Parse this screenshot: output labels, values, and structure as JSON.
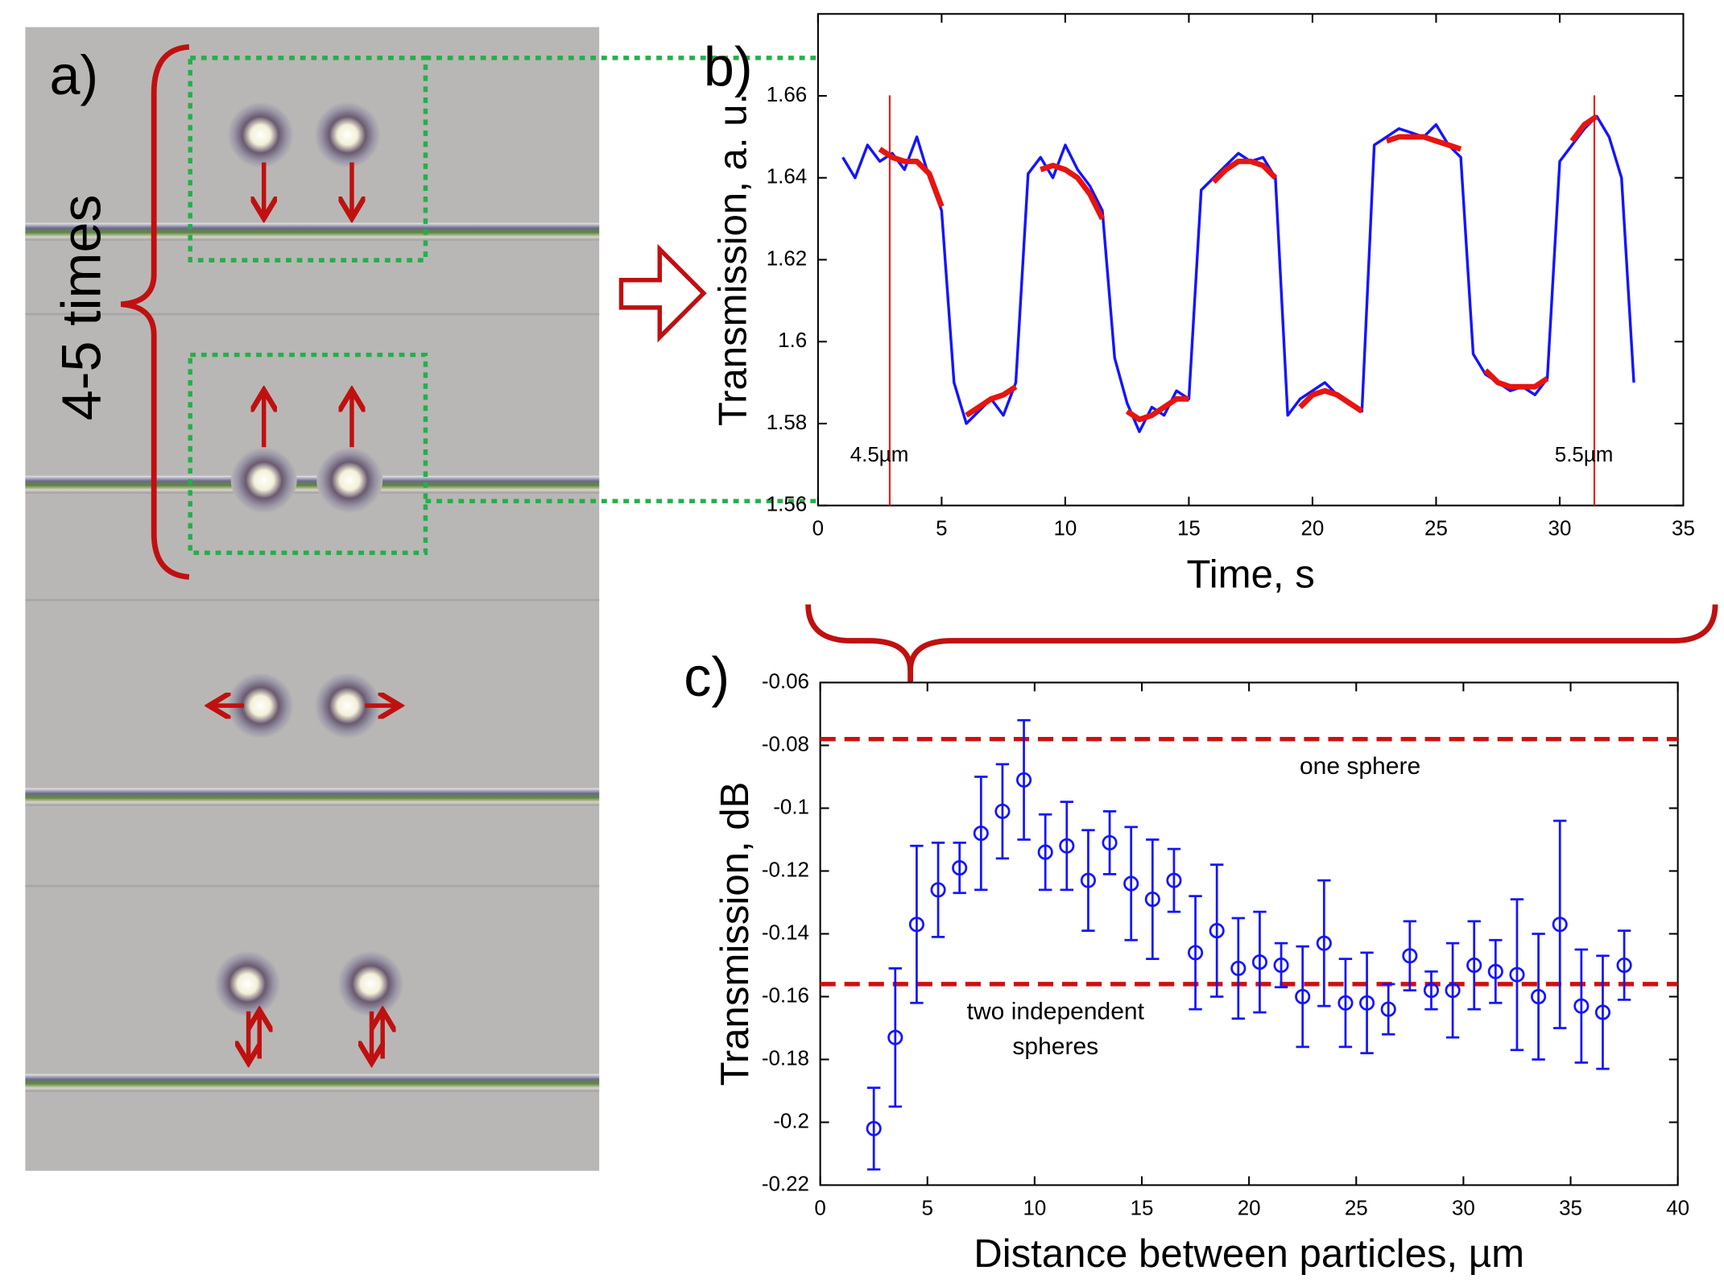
{
  "photo_panel": {
    "panel_label": "a)",
    "annotation": "4-5 times"
  },
  "chart_data": [
    {
      "type": "line",
      "panel_label": "b)",
      "x_label": "Time, s",
      "y_label": "Transmission, a. u.",
      "x": [
        1,
        1.5,
        2,
        2.5,
        3,
        3.5,
        4,
        4.5,
        5,
        5.5,
        6,
        6.5,
        7,
        7.5,
        8,
        8.5,
        9,
        9.5,
        10,
        10.5,
        11,
        11.5,
        12,
        12.5,
        13,
        13.5,
        14,
        14.5,
        15,
        15.5,
        16,
        16.5,
        17,
        17.5,
        18,
        18.5,
        19,
        19.5,
        20,
        20.5,
        21,
        21.5,
        22,
        22.5,
        23,
        23.5,
        24,
        24.5,
        25,
        25.5,
        26,
        26.5,
        27,
        27.5,
        28,
        28.5,
        29,
        29.5,
        30,
        30.5,
        31,
        31.5,
        32,
        32.5,
        33
      ],
      "series": [
        {
          "color": "#1414ff",
          "values": [
            1.645,
            1.64,
            1.648,
            1.644,
            1.646,
            1.642,
            1.65,
            1.64,
            1.632,
            1.59,
            1.58,
            1.583,
            1.586,
            1.582,
            1.59,
            1.641,
            1.645,
            1.64,
            1.648,
            1.642,
            1.638,
            1.632,
            1.596,
            1.585,
            1.578,
            1.584,
            1.582,
            1.588,
            1.586,
            1.637,
            1.64,
            1.643,
            1.646,
            1.644,
            1.645,
            1.64,
            1.582,
            1.586,
            1.588,
            1.59,
            1.587,
            1.585,
            1.583,
            1.648,
            1.65,
            1.652,
            1.651,
            1.65,
            1.653,
            1.648,
            1.645,
            1.597,
            1.592,
            1.59,
            1.588,
            1.589,
            1.587,
            1.591,
            1.644,
            1.648,
            1.652,
            1.655,
            1.65,
            1.64,
            1.59
          ]
        },
        {
          "color": "#e8140f",
          "values": [
            null,
            null,
            null,
            1.647,
            1.645,
            1.644,
            1.644,
            1.641,
            1.633,
            null,
            1.582,
            1.584,
            1.586,
            1.587,
            1.589,
            null,
            1.642,
            1.643,
            1.642,
            1.64,
            1.636,
            1.63,
            null,
            1.583,
            1.581,
            1.582,
            1.584,
            1.586,
            1.586,
            null,
            1.639,
            1.642,
            1.644,
            1.644,
            1.643,
            1.64,
            null,
            1.584,
            1.587,
            1.588,
            1.587,
            1.585,
            1.583,
            null,
            1.649,
            1.65,
            1.65,
            1.65,
            1.649,
            1.648,
            1.647,
            null,
            1.593,
            1.59,
            1.589,
            1.589,
            1.589,
            1.591,
            null,
            1.649,
            1.653,
            1.655,
            null,
            null,
            null
          ]
        }
      ],
      "markers": [
        {
          "x": 2.9,
          "label": "4.5µm",
          "color": "#e8140f"
        },
        {
          "x": 31.4,
          "label": "5.5µm",
          "color": "#e8140f"
        }
      ],
      "xlim": [
        0,
        35
      ],
      "xticks": [
        0,
        5,
        10,
        15,
        20,
        25,
        30,
        35
      ],
      "ylim": [
        1.56,
        1.68
      ],
      "yticks": [
        1.56,
        1.58,
        1.6,
        1.62,
        1.64,
        1.66
      ],
      "grid": false
    },
    {
      "type": "errorbar",
      "panel_label": "c)",
      "x_label": "Distance between particles, µm",
      "y_label": "Transmission, dB",
      "color": "#1414ff",
      "x": [
        2.5,
        3.5,
        4.5,
        5.5,
        6.5,
        7.5,
        8.5,
        9.5,
        10.5,
        11.5,
        12.5,
        13.5,
        14.5,
        15.5,
        16.5,
        17.5,
        18.5,
        19.5,
        20.5,
        21.5,
        22.5,
        23.5,
        24.5,
        25.5,
        26.5,
        27.5,
        28.5,
        29.5,
        30.5,
        31.5,
        32.5,
        33.5,
        34.5,
        35.5,
        36.5,
        37.5
      ],
      "values": [
        -0.202,
        -0.173,
        -0.137,
        -0.126,
        -0.119,
        -0.108,
        -0.101,
        -0.091,
        -0.114,
        -0.112,
        -0.123,
        -0.111,
        -0.124,
        -0.129,
        -0.123,
        -0.146,
        -0.139,
        -0.151,
        -0.149,
        -0.15,
        -0.16,
        -0.143,
        -0.162,
        -0.162,
        -0.164,
        -0.147,
        -0.158,
        -0.158,
        -0.15,
        -0.152,
        -0.153,
        -0.16,
        -0.137,
        -0.163,
        -0.165,
        -0.15
      ],
      "errors": [
        0.013,
        0.022,
        0.025,
        0.015,
        0.008,
        0.018,
        0.015,
        0.019,
        0.012,
        0.014,
        0.016,
        0.01,
        0.018,
        0.019,
        0.01,
        0.018,
        0.021,
        0.016,
        0.016,
        0.007,
        0.016,
        0.02,
        0.014,
        0.016,
        0.008,
        0.011,
        0.006,
        0.015,
        0.014,
        0.01,
        0.024,
        0.02,
        0.033,
        0.018,
        0.018,
        0.011
      ],
      "reference_lines": [
        {
          "value": -0.078,
          "label": [
            "one sphere"
          ],
          "color": "#cc1111"
        },
        {
          "value": -0.156,
          "label": [
            "two independent",
            "spheres"
          ],
          "color": "#cc1111"
        }
      ],
      "xlim": [
        0,
        40
      ],
      "xticks": [
        0,
        5,
        10,
        15,
        20,
        25,
        30,
        35,
        40
      ],
      "ylim": [
        -0.22,
        -0.06
      ],
      "yticks": [
        -0.22,
        -0.2,
        -0.18,
        -0.16,
        -0.14,
        -0.12,
        -0.1,
        -0.08,
        -0.06
      ],
      "grid": false
    }
  ]
}
